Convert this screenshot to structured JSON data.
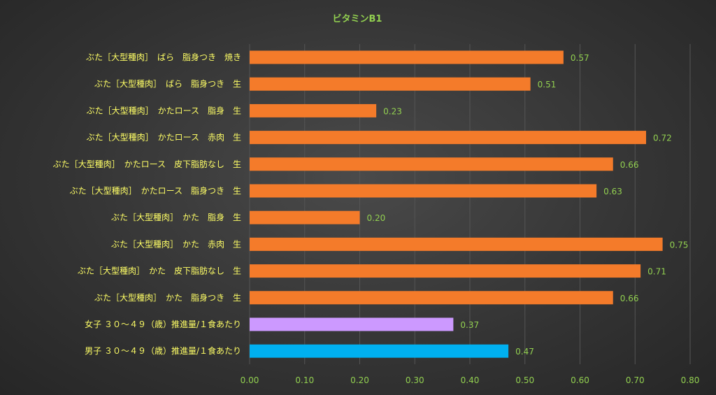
{
  "chart_data": {
    "type": "bar",
    "orientation": "horizontal",
    "title": "ビタミンB1",
    "categories": [
      "ぶた［大型種肉］　ばら　脂身つき　焼き",
      "ぶた［大型種肉］　ばら　脂身つき　生",
      "ぶた［大型種肉］　かたロース　脂身　生",
      "ぶた［大型種肉］　かたロース　赤肉　生",
      "ぶた［大型種肉］　かたロース　皮下脂肪なし　生",
      "ぶた［大型種肉］　かたロース　脂身つき　生",
      "ぶた［大型種肉］　かた　脂身　生",
      "ぶた［大型種肉］　かた　赤肉　生",
      "ぶた［大型種肉］　かた　皮下脂肪なし　生",
      "ぶた［大型種肉］　かた　脂身つき　生",
      "女子 ３０～４９（歳）推進量/１食あたり",
      "男子 ３０～４９（歳）推進量/１食あたり"
    ],
    "values": [
      0.57,
      0.51,
      0.23,
      0.72,
      0.66,
      0.63,
      0.2,
      0.75,
      0.71,
      0.66,
      0.37,
      0.47
    ],
    "value_labels": [
      "0.57",
      "0.51",
      "0.23",
      "0.72",
      "0.66",
      "0.63",
      "0.20",
      "0.75",
      "0.71",
      "0.66",
      "0.37",
      "0.47"
    ],
    "bar_colors": [
      "#f47b2a",
      "#f47b2a",
      "#f47b2a",
      "#f47b2a",
      "#f47b2a",
      "#f47b2a",
      "#f47b2a",
      "#f47b2a",
      "#f47b2a",
      "#f47b2a",
      "#cc99ff",
      "#00b0f0"
    ],
    "xlim": [
      0,
      0.8
    ],
    "x_ticks": [
      "0.00",
      "0.10",
      "0.20",
      "0.30",
      "0.40",
      "0.50",
      "0.60",
      "0.70",
      "0.80"
    ],
    "grid": true,
    "legend": "none",
    "colors": {
      "title": "#92d050",
      "category_labels": "#ffff66",
      "tick_labels": "#92d050",
      "data_labels": "#92d050",
      "gridlines": "#555555"
    }
  }
}
